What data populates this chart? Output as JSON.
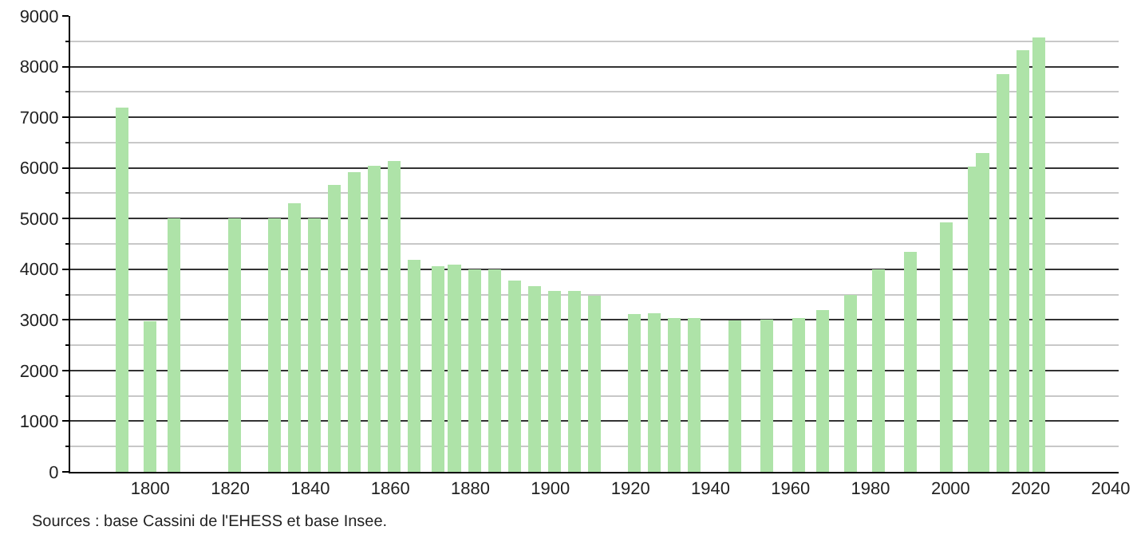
{
  "chart_data": {
    "type": "bar",
    "x": [
      1793,
      1800,
      1806,
      1821,
      1831,
      1836,
      1841,
      1846,
      1851,
      1856,
      1861,
      1866,
      1872,
      1876,
      1881,
      1886,
      1891,
      1896,
      1901,
      1906,
      1911,
      1921,
      1926,
      1931,
      1936,
      1946,
      1954,
      1962,
      1968,
      1975,
      1982,
      1990,
      1999,
      2006,
      2008,
      2013,
      2018,
      2022
    ],
    "values": [
      7190,
      2980,
      5000,
      5000,
      5000,
      5300,
      5000,
      5670,
      5920,
      6040,
      6140,
      4190,
      4060,
      4090,
      4000,
      4000,
      3780,
      3660,
      3570,
      3570,
      3470,
      3120,
      3130,
      3040,
      3040,
      2990,
      3010,
      3040,
      3200,
      3490,
      4000,
      4350,
      4920,
      6020,
      6300,
      7850,
      8320,
      8570
    ],
    "color": "#aee3a8",
    "xlim": [
      1780,
      2042
    ],
    "xticks": [
      1800,
      1820,
      1840,
      1860,
      1880,
      1900,
      1920,
      1940,
      1960,
      1980,
      2000,
      2020,
      2040
    ],
    "ylim": [
      0,
      9000
    ],
    "yticks": [
      0,
      1000,
      2000,
      3000,
      4000,
      5000,
      6000,
      7000,
      8000,
      9000
    ],
    "grid": "y",
    "annotations": [
      "Sources : base Cassini de l'EHESS et base Insee."
    ]
  }
}
